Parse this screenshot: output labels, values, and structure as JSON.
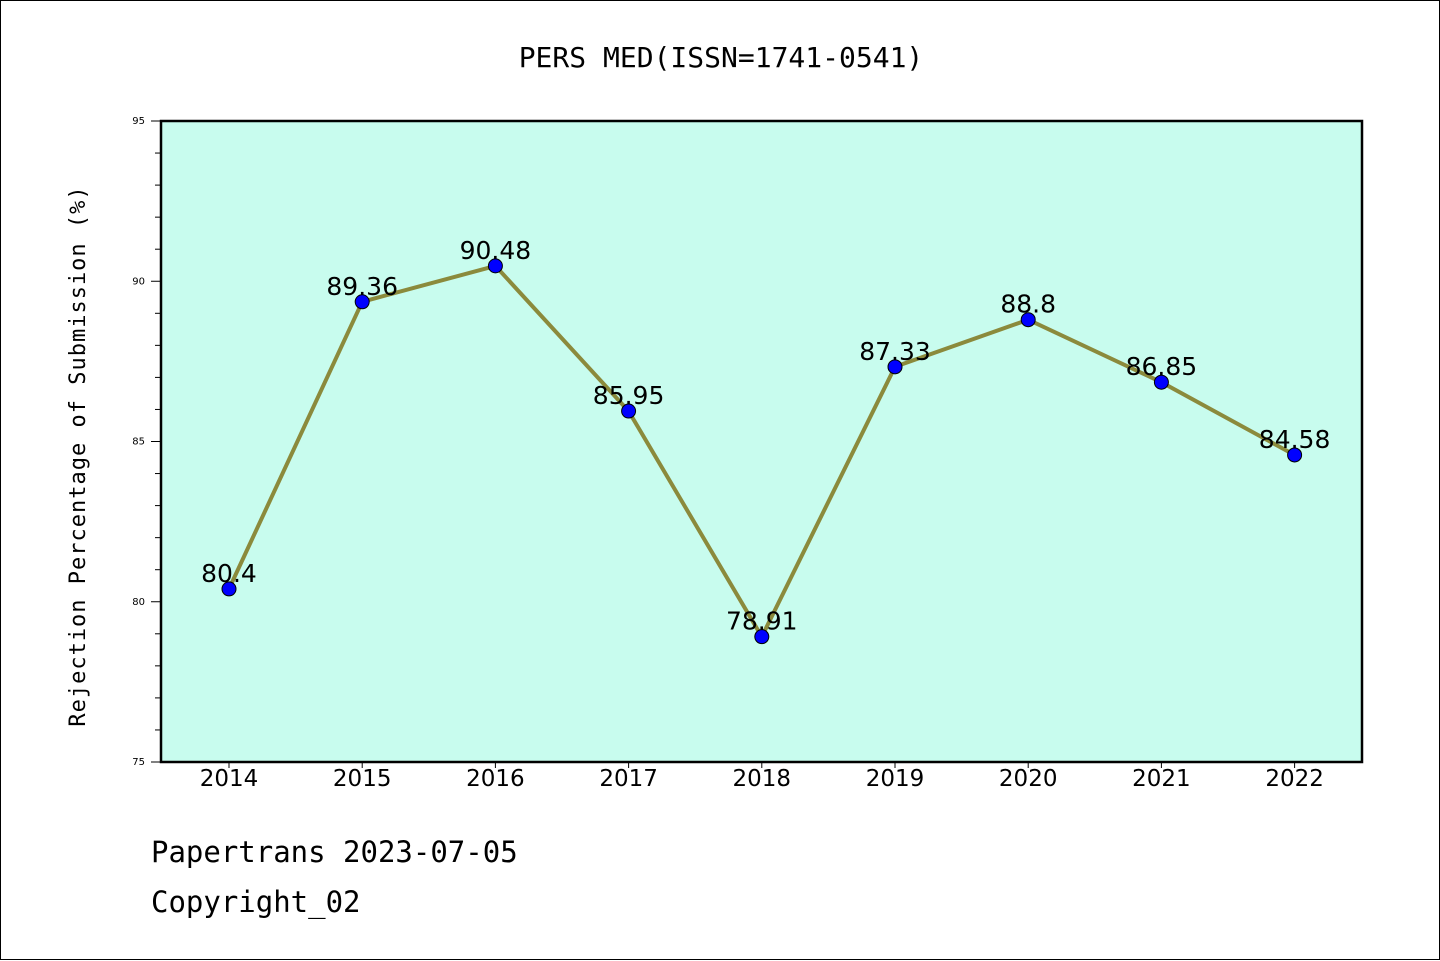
{
  "chart_data": {
    "type": "line",
    "title": "PERS MED(ISSN=1741-0541)",
    "xlabel": "",
    "ylabel": "Rejection Percentage of Submission (%)",
    "categories": [
      "2014",
      "2015",
      "2016",
      "2017",
      "2018",
      "2019",
      "2020",
      "2021",
      "2022"
    ],
    "series": [
      {
        "values": [
          80.4,
          89.36,
          90.48,
          85.95,
          78.91,
          87.33,
          88.8,
          86.85,
          84.58
        ],
        "labels": [
          "80.4",
          "89.36",
          "90.48",
          "85.95",
          "78.91",
          "87.33",
          "88.8",
          "86.85",
          "84.58"
        ]
      }
    ],
    "ylim": [
      75,
      95
    ],
    "yticks": [
      "75",
      "80",
      "85",
      "90",
      "95"
    ],
    "grid": false,
    "colors": {
      "plot_background": "#c8fcee",
      "line": "#8b8a3c",
      "marker": "#0000ff"
    }
  },
  "footer": {
    "line1": "Papertrans 2023-07-05",
    "line2": "Copyright_02"
  }
}
